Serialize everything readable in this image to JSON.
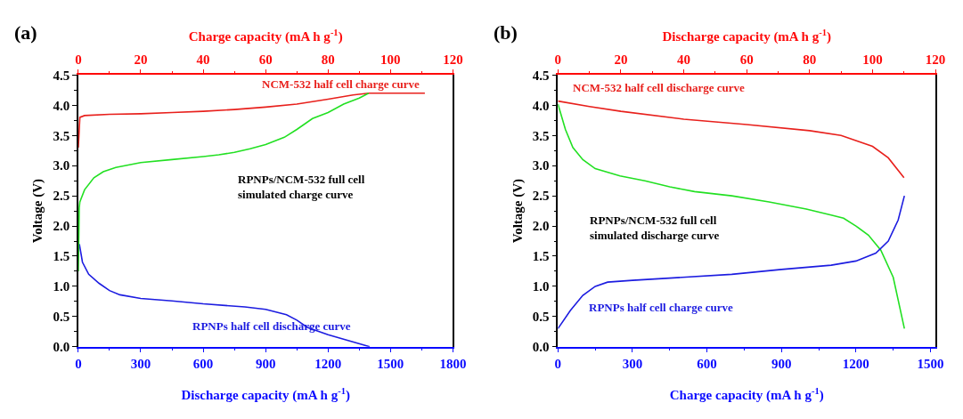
{
  "chart_data": [
    {
      "type": "line",
      "title": "(a)",
      "xlabel": "Discharge capacity (mA h g$^{-1}$)",
      "x2label": "Charge capacity (mA h g$^{-1}$)",
      "ylabel": "Voltage (V)",
      "xlim": [
        0,
        1800
      ],
      "xticks": [
        0,
        300,
        600,
        900,
        1200,
        1500,
        1800
      ],
      "x2lim": [
        0,
        120
      ],
      "x2ticks": [
        0,
        20,
        40,
        60,
        80,
        100,
        120
      ],
      "ylim": [
        0,
        4.5
      ],
      "yticks": [
        {
          "value": 0,
          "label": "0.0"
        },
        0.5,
        {
          "value": 1,
          "label": "1.0"
        },
        1.5,
        {
          "value": 2,
          "label": "2.0"
        },
        2.5,
        {
          "value": 3,
          "label": "3.0"
        },
        3.5,
        {
          "value": 4,
          "label": "4.0"
        },
        4.5
      ],
      "grid": false,
      "series": [
        {
          "name": "NCM-532 half cell charge curve",
          "color": "#e8201c",
          "axis": "x2",
          "x": [
            0,
            0.5,
            2,
            10,
            20,
            30,
            40,
            50,
            60,
            70,
            80,
            88,
            93,
            100,
            111
          ],
          "values": [
            3.3,
            3.8,
            3.83,
            3.85,
            3.86,
            3.88,
            3.9,
            3.93,
            3.97,
            4.02,
            4.1,
            4.17,
            4.2,
            4.2,
            4.2
          ]
        },
        {
          "name": "RPNPs/NCM-532 full cell\nsimulated charge curve",
          "color": "#22e022",
          "axis": "x2",
          "x": [
            0,
            0.3,
            0.5,
            2,
            5,
            8,
            12,
            20,
            30,
            40,
            45,
            50,
            55,
            60,
            66,
            70,
            75,
            80,
            85,
            90,
            93
          ],
          "values": [
            1.25,
            2.3,
            2.4,
            2.6,
            2.8,
            2.9,
            2.97,
            3.05,
            3.1,
            3.15,
            3.18,
            3.22,
            3.28,
            3.35,
            3.47,
            3.6,
            3.78,
            3.88,
            4.02,
            4.12,
            4.2
          ]
        },
        {
          "name": "RPNPs half cell discharge curve",
          "color": "#1c1ce0",
          "x": [
            5,
            20,
            50,
            100,
            150,
            200,
            300,
            450,
            600,
            800,
            900,
            1000,
            1050,
            1100,
            1200,
            1300,
            1400
          ],
          "values": [
            1.7,
            1.4,
            1.2,
            1.05,
            0.93,
            0.86,
            0.8,
            0.76,
            0.71,
            0.66,
            0.62,
            0.53,
            0.44,
            0.32,
            0.2,
            0.1,
            0.0
          ]
        }
      ]
    },
    {
      "type": "line",
      "title": "(b)",
      "xlabel": "Charge capacity (mA h g$^{-1}$)",
      "x2label": "Discharge capacity (mA h g$^{-1}$)",
      "ylabel": "Voltage (V)",
      "xlim": [
        0,
        1520
      ],
      "xticks": [
        0,
        300,
        600,
        900,
        1200,
        1500
      ],
      "x2lim": [
        0,
        120
      ],
      "x2ticks": [
        0,
        20,
        40,
        60,
        80,
        100,
        120
      ],
      "ylim": [
        0,
        4.5
      ],
      "yticks": [
        {
          "value": 0,
          "label": "0.0"
        },
        0.5,
        {
          "value": 1,
          "label": "1.0"
        },
        1.5,
        {
          "value": 2,
          "label": "2.0"
        },
        2.5,
        {
          "value": 3,
          "label": "3.0"
        },
        3.5,
        {
          "value": 4,
          "label": "4.0"
        },
        4.5
      ],
      "grid": false,
      "series": [
        {
          "name": "NCM-532 half cell discharge curve",
          "color": "#e8201c",
          "axis": "x2",
          "x": [
            0,
            10,
            20,
            40,
            60,
            80,
            90,
            100,
            105,
            110
          ],
          "values": [
            4.07,
            3.98,
            3.9,
            3.77,
            3.68,
            3.58,
            3.5,
            3.32,
            3.13,
            2.8
          ]
        },
        {
          "name": "RPNPs/NCM-532 full cell\nsimulated discharge curve",
          "color": "#22e022",
          "x": [
            0,
            30,
            60,
            100,
            150,
            250,
            350,
            450,
            550,
            700,
            850,
            1000,
            1100,
            1150,
            1200,
            1250,
            1300,
            1350,
            1395
          ],
          "values": [
            4.02,
            3.6,
            3.3,
            3.1,
            2.95,
            2.83,
            2.75,
            2.65,
            2.57,
            2.5,
            2.4,
            2.28,
            2.18,
            2.13,
            2.0,
            1.85,
            1.6,
            1.15,
            0.3
          ]
        },
        {
          "name": "RPNPs half cell charge curve",
          "color": "#1c1ce0",
          "x": [
            0,
            50,
            100,
            150,
            200,
            300,
            500,
            700,
            900,
            1100,
            1200,
            1280,
            1330,
            1370,
            1395
          ],
          "values": [
            0.3,
            0.6,
            0.85,
            1.0,
            1.07,
            1.1,
            1.15,
            1.2,
            1.28,
            1.35,
            1.42,
            1.55,
            1.75,
            2.1,
            2.5
          ]
        }
      ]
    }
  ]
}
